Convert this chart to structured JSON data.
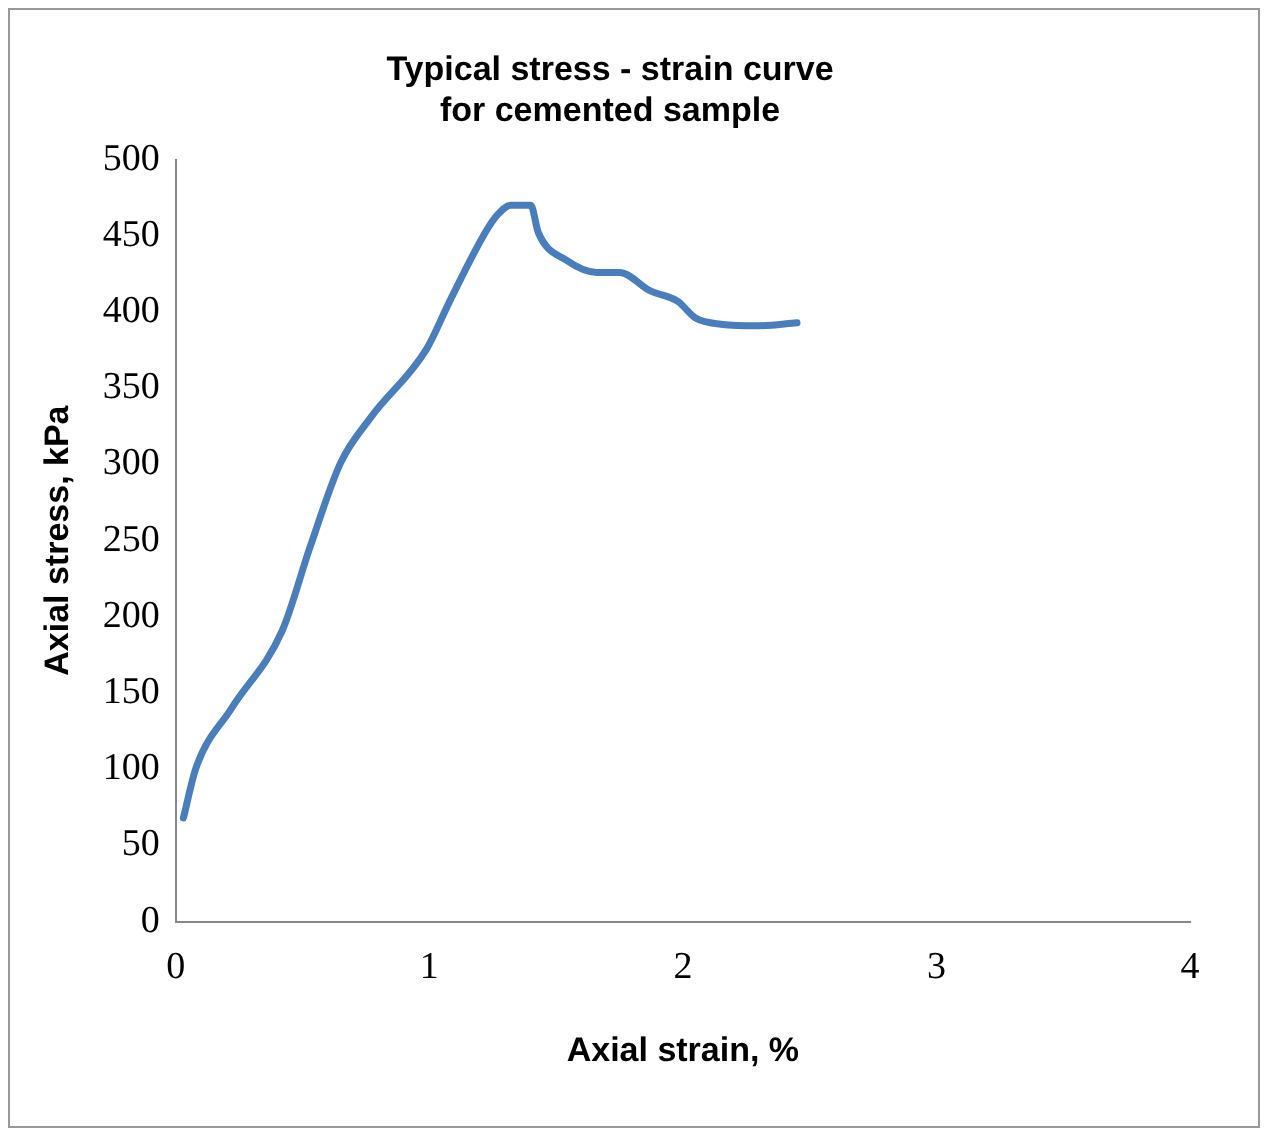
{
  "chart_data": {
    "type": "line",
    "title": "Typical stress - strain curve for cemented sample",
    "xlabel": "Axial strain, %",
    "ylabel": "Axial stress, kPa",
    "series": [
      {
        "color": "#4a7ebb",
        "x": [
          0.03,
          0.08,
          0.22,
          0.42,
          0.53,
          0.65,
          0.77,
          0.99,
          1.08,
          1.22,
          1.27,
          1.32,
          1.4,
          1.43,
          1.54,
          1.66,
          1.75,
          1.87,
          1.98,
          2.05,
          2.15,
          2.3,
          2.45
        ],
        "values": [
          68,
          101,
          140,
          191,
          246,
          301,
          331,
          376,
          407,
          452,
          464,
          470,
          470,
          452,
          434,
          426,
          426,
          414,
          407,
          396,
          392,
          391,
          393
        ]
      }
    ],
    "xlim": [
      0,
      4
    ],
    "xticks": [
      0,
      1,
      2,
      3,
      4
    ],
    "ylim": [
      0,
      500
    ],
    "yticks": [
      0,
      50,
      100,
      150,
      200,
      250,
      300,
      350,
      400,
      450,
      500
    ],
    "grid": false,
    "legend": false,
    "marker": "none",
    "line_style": "solid"
  }
}
